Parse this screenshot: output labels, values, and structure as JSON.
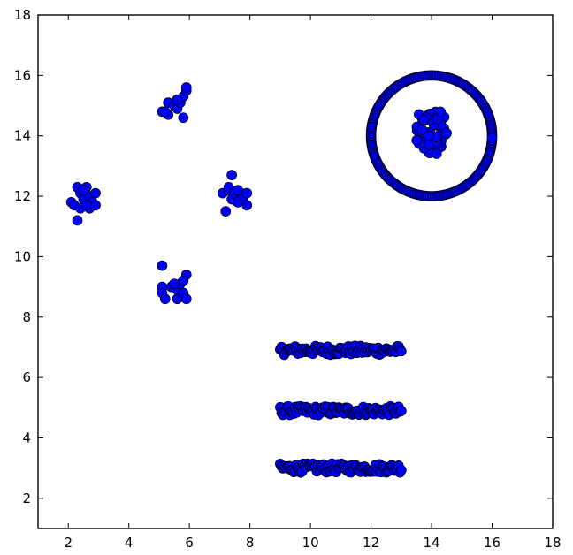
{
  "chart_data": {
    "type": "scatter",
    "title": "",
    "xlabel": "",
    "ylabel": "",
    "xlim": [
      1,
      18
    ],
    "ylim": [
      1,
      18
    ],
    "xticks": [
      2,
      4,
      6,
      8,
      10,
      12,
      14,
      16,
      18
    ],
    "yticks": [
      2,
      4,
      6,
      8,
      10,
      12,
      14,
      16,
      18
    ],
    "grid": false,
    "legend": "none",
    "marker_color": "#0000ff",
    "marker_edge_color": "#000000",
    "series": [
      {
        "clusters": [
          {
            "shape": "blob",
            "points": [
              [
                2.1,
                11.8
              ],
              [
                2.2,
                11.7
              ],
              [
                2.3,
                12.3
              ],
              [
                2.4,
                12.1
              ],
              [
                2.4,
                11.6
              ],
              [
                2.5,
                11.9
              ],
              [
                2.6,
                12.3
              ],
              [
                2.7,
                12.0
              ],
              [
                2.7,
                11.6
              ],
              [
                2.8,
                11.8
              ],
              [
                2.9,
                12.1
              ],
              [
                2.9,
                11.7
              ],
              [
                2.3,
                11.2
              ],
              [
                2.5,
                12.2
              ],
              [
                2.6,
                11.7
              ]
            ]
          },
          {
            "shape": "blob",
            "points": [
              [
                5.1,
                14.8
              ],
              [
                5.3,
                14.7
              ],
              [
                5.3,
                15.1
              ],
              [
                5.5,
                15.0
              ],
              [
                5.6,
                14.9
              ],
              [
                5.7,
                15.1
              ],
              [
                5.8,
                15.3
              ],
              [
                5.9,
                15.5
              ],
              [
                5.9,
                15.6
              ],
              [
                5.8,
                14.6
              ],
              [
                5.6,
                15.2
              ],
              [
                5.2,
                14.8
              ]
            ]
          },
          {
            "shape": "blob",
            "points": [
              [
                7.1,
                12.1
              ],
              [
                7.2,
                11.5
              ],
              [
                7.3,
                12.2
              ],
              [
                7.4,
                12.7
              ],
              [
                7.4,
                11.9
              ],
              [
                7.5,
                12.1
              ],
              [
                7.6,
                11.8
              ],
              [
                7.7,
                12.1
              ],
              [
                7.8,
                12.0
              ],
              [
                7.9,
                11.7
              ],
              [
                7.9,
                12.1
              ],
              [
                7.3,
                12.3
              ],
              [
                7.6,
                12.2
              ]
            ]
          },
          {
            "shape": "blob",
            "points": [
              [
                5.1,
                9.7
              ],
              [
                5.1,
                9.0
              ],
              [
                5.1,
                8.8
              ],
              [
                5.2,
                8.6
              ],
              [
                5.4,
                9.0
              ],
              [
                5.6,
                8.9
              ],
              [
                5.6,
                8.6
              ],
              [
                5.7,
                9.1
              ],
              [
                5.8,
                8.8
              ],
              [
                5.9,
                9.4
              ],
              [
                5.9,
                8.6
              ],
              [
                5.8,
                9.2
              ],
              [
                5.5,
                9.1
              ]
            ]
          }
        ]
      }
    ],
    "ring": {
      "cx": 14,
      "cy": 14,
      "r": 2,
      "count": 170
    },
    "ring_inner": {
      "x_range": [
        13.5,
        14.5
      ],
      "y_range": [
        13.4,
        14.8
      ],
      "count": 60
    },
    "bands": [
      {
        "y": 7.0,
        "x_range": [
          9,
          13
        ],
        "spread": 0.15,
        "count": 90
      },
      {
        "y": 5.0,
        "x_range": [
          9,
          13
        ],
        "spread": 0.15,
        "count": 90
      },
      {
        "y": 3.1,
        "x_range": [
          9,
          13
        ],
        "spread": 0.15,
        "count": 90
      }
    ]
  }
}
